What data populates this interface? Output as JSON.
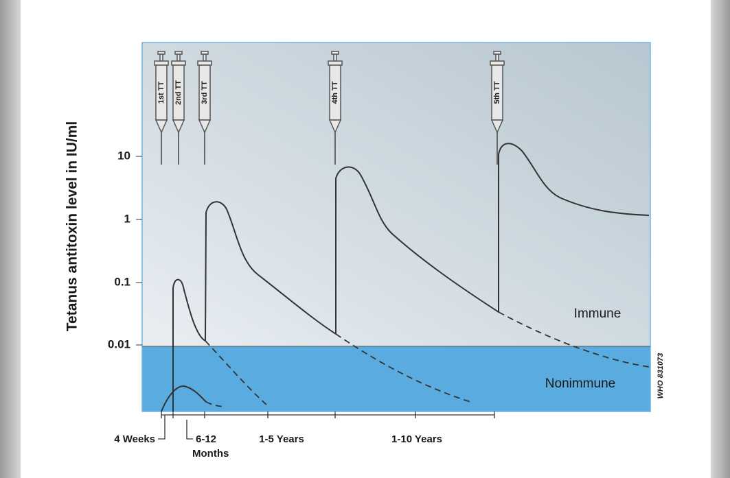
{
  "y_axis": {
    "title": "Tetanus antitoxin level in IU/ml",
    "ticks": [
      "10",
      "1",
      "0.1",
      "0.01"
    ]
  },
  "doses": [
    "1st TT",
    "2nd TT",
    "3rd TT",
    "4th TT",
    "5th TT"
  ],
  "regions": {
    "upper": "Immune",
    "lower": "Nonimmune"
  },
  "intervals": [
    "4 Weeks",
    "6-12",
    "Months",
    "1-5 Years",
    "1-10 Years"
  ],
  "reference": "WHO 831073"
}
